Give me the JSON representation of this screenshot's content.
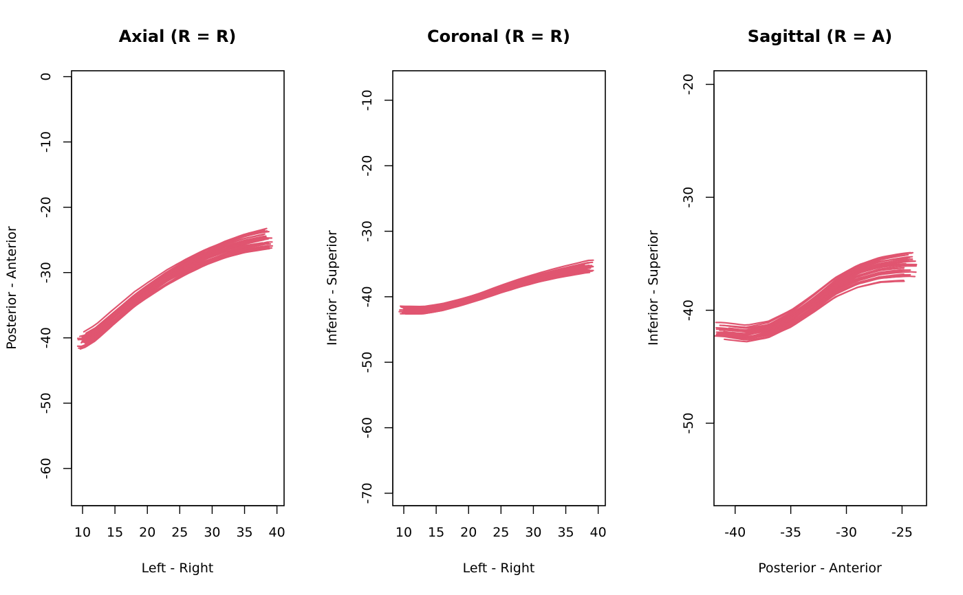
{
  "colors": {
    "streamline": "#e05570",
    "axis": "#000000",
    "background": "#ffffff"
  },
  "chart_data": [
    {
      "type": "line",
      "title": "Axial (R = R)",
      "xlabel": "Left - Right",
      "ylabel": "Posterior - Anterior",
      "xlim": [
        8.3,
        41.1
      ],
      "ylim": [
        -65.7,
        0.9
      ],
      "xticks": [
        10,
        15,
        20,
        25,
        30,
        35,
        40
      ],
      "xtick_labels": [
        "10",
        "15",
        "20",
        "25",
        "30",
        "35",
        "40"
      ],
      "yticks": [
        0,
        -10,
        -20,
        -30,
        -40,
        -50,
        -60
      ],
      "ytick_labels": [
        "0",
        "-10",
        "-20",
        "-30",
        "-40",
        "-50",
        "-60"
      ],
      "grid": false,
      "series_count": 30,
      "series_spread": 1.5,
      "centerline": {
        "x": [
          10,
          12,
          15,
          18,
          20,
          23,
          26,
          29,
          32,
          35,
          38.5
        ],
        "y": [
          -40.5,
          -39.3,
          -36.7,
          -34.2,
          -32.8,
          -30.8,
          -29.1,
          -27.6,
          -26.4,
          -25.5,
          -24.8
        ]
      }
    },
    {
      "type": "line",
      "title": "Coronal (R = R)",
      "xlabel": "Left - Right",
      "ylabel": "Inferior - Superior",
      "xlim": [
        8.3,
        41.1
      ],
      "ylim": [
        -71.9,
        -5.5
      ],
      "xticks": [
        10,
        15,
        20,
        25,
        30,
        35,
        40
      ],
      "xtick_labels": [
        "10",
        "15",
        "20",
        "25",
        "30",
        "35",
        "40"
      ],
      "yticks": [
        -10,
        -20,
        -30,
        -40,
        -50,
        -60,
        -70
      ],
      "ytick_labels": [
        "-10",
        "-20",
        "-30",
        "-40",
        "-50",
        "-60",
        "-70"
      ],
      "grid": false,
      "series_count": 30,
      "series_spread": 0.8,
      "centerline": {
        "x": [
          10,
          13,
          16,
          19,
          22,
          25,
          28,
          31,
          34,
          36,
          38.5
        ],
        "y": [
          -42,
          -42,
          -41.5,
          -40.7,
          -39.8,
          -38.8,
          -37.9,
          -37.1,
          -36.4,
          -36,
          -35.5
        ]
      }
    },
    {
      "type": "line",
      "title": "Sagittal (R = A)",
      "xlabel": "Posterior - Anterior",
      "ylabel": "Inferior - Superior",
      "xlim": [
        -41.9,
        -22.8
      ],
      "ylim": [
        -57.3,
        -18.8
      ],
      "xticks": [
        -40,
        -35,
        -30,
        -25
      ],
      "xtick_labels": [
        "-40",
        "-35",
        "-30",
        "-25"
      ],
      "yticks": [
        -20,
        -30,
        -40,
        -50
      ],
      "ytick_labels": [
        "-20",
        "-30",
        "-40",
        "-50"
      ],
      "grid": false,
      "series_count": 30,
      "series_spread": 1.0,
      "centerline": {
        "x": [
          -41,
          -39,
          -37,
          -35,
          -33,
          -31,
          -29,
          -27,
          -25.5,
          -24.5
        ],
        "y": [
          -42,
          -42.2,
          -41.8,
          -40.8,
          -39.4,
          -37.9,
          -36.9,
          -36.3,
          -36.1,
          -36
        ]
      }
    }
  ]
}
